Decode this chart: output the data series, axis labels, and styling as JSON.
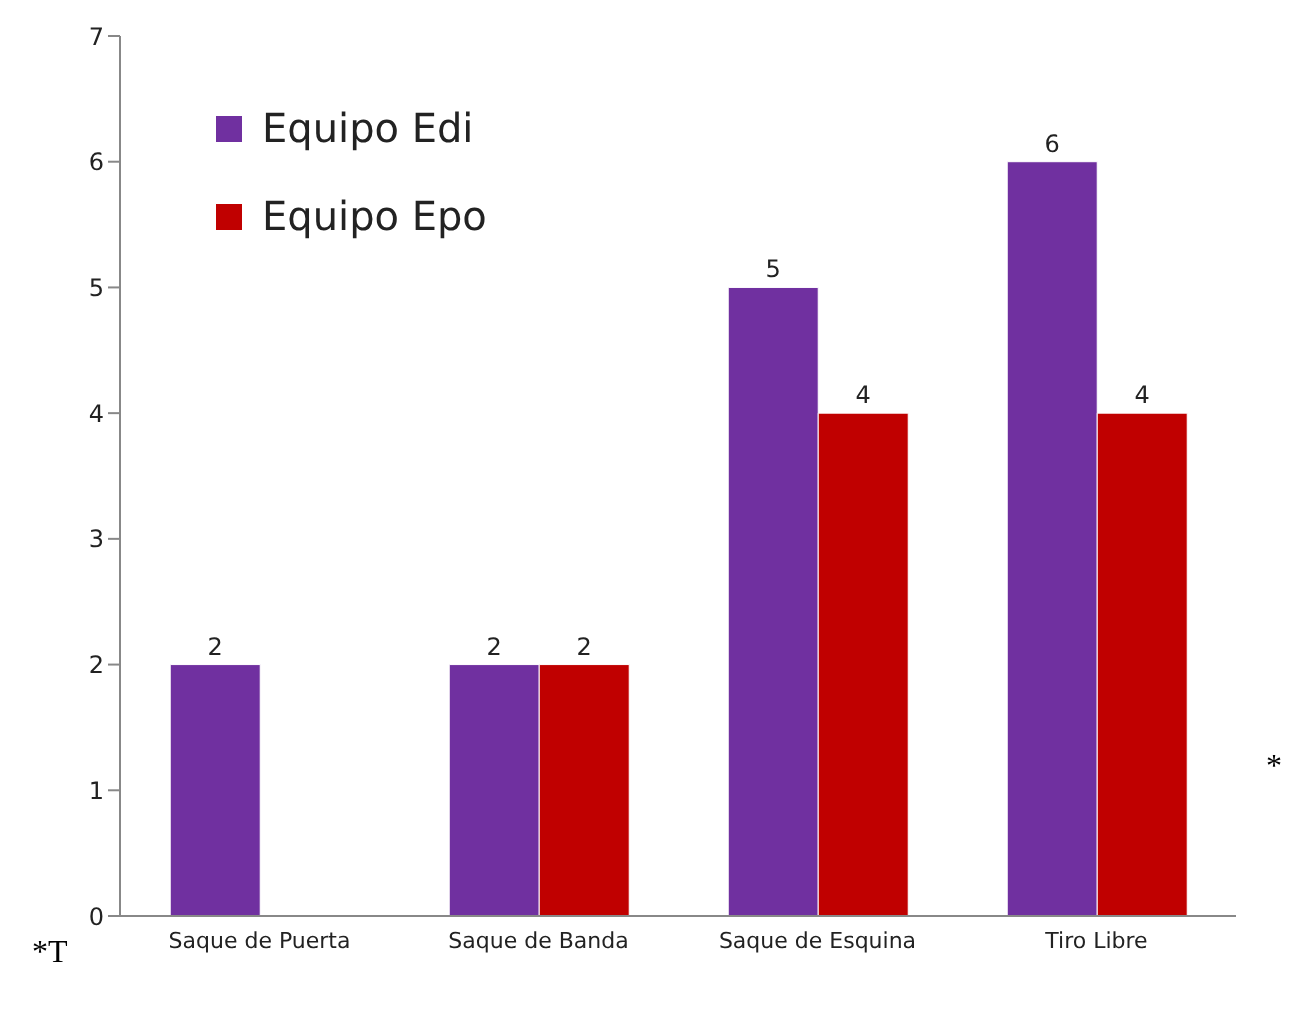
{
  "chart_data": {
    "type": "bar",
    "categories": [
      "Saque de Puerta",
      "Saque de Banda",
      "Saque de Esquina",
      "Tiro Libre"
    ],
    "series": [
      {
        "name": "Equipo Edi",
        "color": "#7030a0",
        "values": [
          2,
          2,
          5,
          6
        ]
      },
      {
        "name": "Equipo Epo",
        "color": "#c00000",
        "values": [
          null,
          2,
          4,
          4
        ]
      }
    ],
    "ylim": [
      0,
      7
    ],
    "yticks": [
      0,
      1,
      2,
      3,
      4,
      5,
      6,
      7
    ],
    "grid": false,
    "legend": "top left",
    "data_labels": true,
    "annotations": [
      "*T",
      "*"
    ]
  }
}
